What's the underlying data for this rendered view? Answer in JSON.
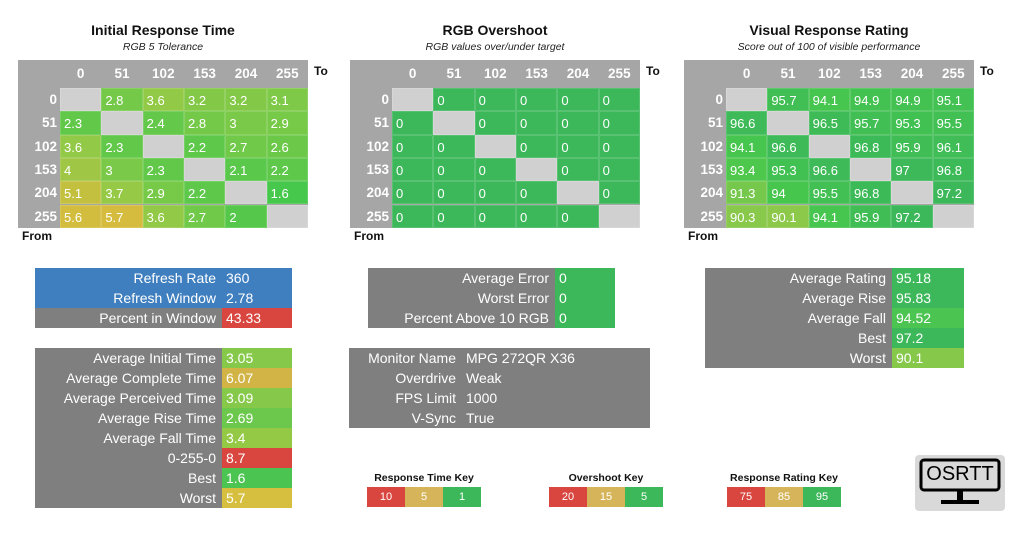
{
  "chart_data": [
    {
      "type": "heatmap",
      "title": "Initial Response Time",
      "subtitle": "RGB 5 Tolerance",
      "x_label": "To",
      "y_label": "From",
      "categories": [
        "0",
        "51",
        "102",
        "153",
        "204",
        "255"
      ],
      "values": [
        [
          null,
          2.8,
          3.6,
          3.2,
          3.2,
          3.1
        ],
        [
          2.3,
          null,
          2.4,
          2.8,
          3,
          2.9
        ],
        [
          3.6,
          2.3,
          null,
          2.2,
          2.7,
          2.6
        ],
        [
          4,
          3,
          2.3,
          null,
          2.1,
          2.2
        ],
        [
          5.1,
          3.7,
          2.9,
          2.2,
          null,
          1.6
        ],
        [
          5.6,
          5.7,
          3.6,
          2.7,
          2,
          null
        ]
      ],
      "scale": "time"
    },
    {
      "type": "heatmap",
      "title": "RGB Overshoot",
      "subtitle": "RGB values over/under target",
      "x_label": "To",
      "y_label": "From",
      "categories": [
        "0",
        "51",
        "102",
        "153",
        "204",
        "255"
      ],
      "values": [
        [
          null,
          0,
          0,
          0,
          0,
          0
        ],
        [
          0,
          null,
          0,
          0,
          0,
          0
        ],
        [
          0,
          0,
          null,
          0,
          0,
          0
        ],
        [
          0,
          0,
          0,
          null,
          0,
          0
        ],
        [
          0,
          0,
          0,
          0,
          null,
          0
        ],
        [
          0,
          0,
          0,
          0,
          0,
          null
        ]
      ],
      "scale": "overshoot"
    },
    {
      "type": "heatmap",
      "title": "Visual Response Rating",
      "subtitle": "Score out of 100 of visible performance",
      "x_label": "To",
      "y_label": "From",
      "categories": [
        "0",
        "51",
        "102",
        "153",
        "204",
        "255"
      ],
      "values": [
        [
          null,
          95.7,
          94.1,
          94.9,
          94.9,
          95.1
        ],
        [
          96.6,
          null,
          96.5,
          95.7,
          95.3,
          95.5
        ],
        [
          94.1,
          96.6,
          null,
          96.8,
          95.9,
          96.1
        ],
        [
          93.4,
          95.3,
          96.6,
          null,
          97,
          96.8
        ],
        [
          91.3,
          94,
          95.5,
          96.8,
          null,
          97.2
        ],
        [
          90.3,
          90.1,
          94.1,
          95.9,
          97.2,
          null
        ]
      ],
      "scale": "rating"
    }
  ],
  "colors": {
    "gray": "#7f7f7f",
    "blue": "#3f7fbf",
    "red": "#d9453f",
    "tan": "#d6b55a",
    "green": "#3cb85a",
    "empty": "#d0d0d0"
  },
  "tables": {
    "refresh": [
      {
        "label": "Refresh Rate",
        "value": "360",
        "color": "#3f7fbf"
      },
      {
        "label": "Refresh Window",
        "value": "2.78",
        "color": "#3f7fbf"
      },
      {
        "label": "Percent in Window",
        "value": "43.33",
        "color": "#d9453f"
      }
    ],
    "times": [
      {
        "label": "Average Initial Time",
        "value": "3.05",
        "color": "#86c84a"
      },
      {
        "label": "Average Complete Time",
        "value": "6.07",
        "color": "#d2b446"
      },
      {
        "label": "Average Perceived Time",
        "value": "3.09",
        "color": "#86c84a"
      },
      {
        "label": "Average Rise Time",
        "value": "2.69",
        "color": "#6cc84c"
      },
      {
        "label": "Average Fall Time",
        "value": "3.4",
        "color": "#94c946"
      },
      {
        "label": "0-255-0",
        "value": "8.7",
        "color": "#d9453f"
      },
      {
        "label": "Best",
        "value": "1.6",
        "color": "#4cc451"
      },
      {
        "label": "Worst",
        "value": "5.7",
        "color": "#d6be3e"
      }
    ],
    "overshoot": [
      {
        "label": "Average Error",
        "value": "0",
        "color": "#3cb85a"
      },
      {
        "label": "Worst Error",
        "value": "0",
        "color": "#3cb85a"
      },
      {
        "label": "Percent Above 10 RGB",
        "value": "0",
        "color": "#3cb85a"
      }
    ],
    "monitor": [
      {
        "label": "Monitor Name",
        "value": "MPG 272QR X36"
      },
      {
        "label": "Overdrive",
        "value": "Weak"
      },
      {
        "label": "FPS Limit",
        "value": "1000"
      },
      {
        "label": "V-Sync",
        "value": "True"
      }
    ],
    "rating": [
      {
        "label": "Average Rating",
        "value": "95.18",
        "color": "#3cb85a"
      },
      {
        "label": "Average Rise",
        "value": "95.83",
        "color": "#3cb85a"
      },
      {
        "label": "Average Fall",
        "value": "94.52",
        "color": "#4cc451"
      },
      {
        "label": "Best",
        "value": "97.2",
        "color": "#3cb85a"
      },
      {
        "label": "Worst",
        "value": "90.1",
        "color": "#86c84a"
      }
    ]
  },
  "keys": [
    {
      "title": "Response Time Key",
      "items": [
        {
          "v": "10",
          "c": "#d9453f"
        },
        {
          "v": "5",
          "c": "#d6b55a"
        },
        {
          "v": "1",
          "c": "#3cb85a"
        }
      ]
    },
    {
      "title": "Overshoot Key",
      "items": [
        {
          "v": "20",
          "c": "#d9453f"
        },
        {
          "v": "15",
          "c": "#d6b55a"
        },
        {
          "v": "5",
          "c": "#3cb85a"
        }
      ]
    },
    {
      "title": "Response Rating Key",
      "items": [
        {
          "v": "75",
          "c": "#d9453f"
        },
        {
          "v": "85",
          "c": "#d6b55a"
        },
        {
          "v": "95",
          "c": "#3cb85a"
        }
      ]
    }
  ],
  "logo": "OSRTT"
}
